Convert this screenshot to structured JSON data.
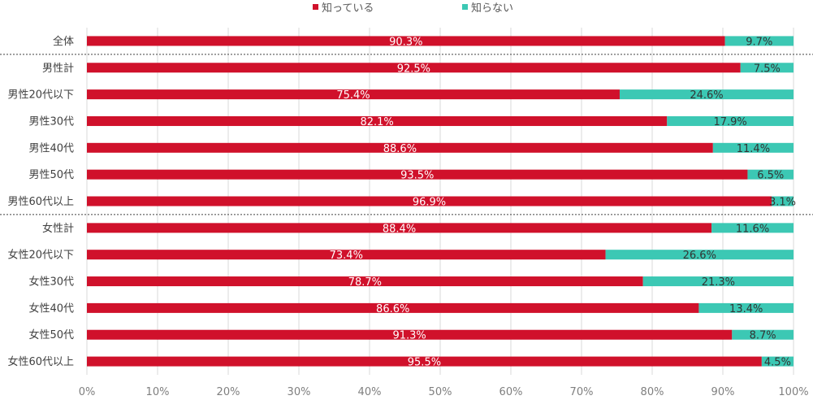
{
  "chart_data": {
    "type": "bar",
    "orientation": "horizontal",
    "stacked": true,
    "categories": [
      "全体",
      "男性計",
      "男性20代以下",
      "男性30代",
      "男性40代",
      "男性50代",
      "男性60代以上",
      "女性計",
      "女性20代以下",
      "女性30代",
      "女性40代",
      "女性50代",
      "女性60代以上"
    ],
    "series": [
      {
        "name": "知っている",
        "color": "#d0112b",
        "labelColor": "#ffffff",
        "values": [
          90.3,
          92.5,
          75.4,
          82.1,
          88.6,
          93.5,
          96.9,
          88.4,
          73.4,
          78.7,
          86.6,
          91.3,
          95.5
        ],
        "labels": [
          "90.3%",
          "92.5%",
          "75.4%",
          "82.1%",
          "88.6%",
          "93.5%",
          "96.9%",
          "88.4%",
          "73.4%",
          "78.7%",
          "86.6%",
          "91.3%",
          "95.5%"
        ]
      },
      {
        "name": "知らない",
        "color": "#3cc8b4",
        "labelColor": "#333333",
        "values": [
          9.7,
          7.5,
          24.6,
          17.9,
          11.4,
          6.5,
          3.1,
          11.6,
          26.6,
          21.3,
          13.4,
          8.7,
          4.5
        ],
        "labels": [
          "9.7%",
          "7.5%",
          "24.6%",
          "17.9%",
          "11.4%",
          "6.5%",
          "3.1%",
          "11.6%",
          "26.6%",
          "21.3%",
          "13.4%",
          "8.7%",
          "4.5%"
        ]
      }
    ],
    "xlim": [
      0,
      100
    ],
    "xticks": [
      "0%",
      "10%",
      "20%",
      "30%",
      "40%",
      "50%",
      "60%",
      "70%",
      "80%",
      "90%",
      "100%"
    ],
    "gridlines": true,
    "separators_after": [
      0,
      6
    ],
    "legend_position": "top"
  }
}
